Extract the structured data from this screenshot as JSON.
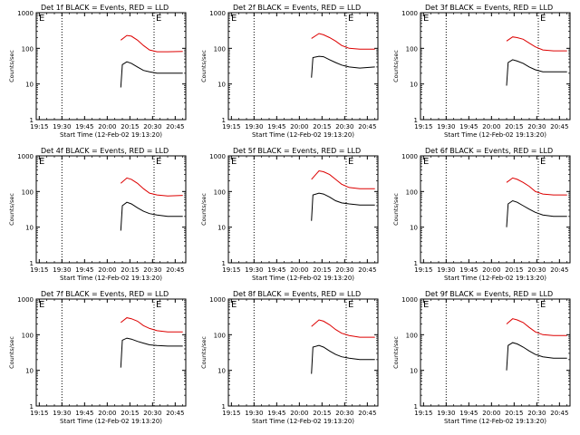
{
  "y_axis_label": "Counts/sec",
  "x_axis_label": "Start Time (12-Feb-02 19:13:20)",
  "x_tick_labels": [
    "19:15",
    "19:30",
    "19:45",
    "20:00",
    "20:15",
    "20:30",
    "20:45"
  ],
  "y_tick_labels": [
    "1",
    "10",
    "100",
    "1000"
  ],
  "top_label_left": "E",
  "top_label_right": "E",
  "colors": {
    "events": "#000000",
    "lld": "#dd0000",
    "axes": "#000000"
  },
  "chart_data": [
    {
      "type": "line",
      "title": "Det 1f BLACK = Events, RED = LLD",
      "xlabel": "Start Time (12-Feb-02 19:13:20)",
      "ylabel": "Counts/sec",
      "x_unit": "HH:MM",
      "ylim": [
        1,
        1000
      ],
      "y_scale": "log",
      "xlim": [
        "19:13",
        "20:52"
      ],
      "vlines": [
        "19:30",
        "20:31"
      ],
      "series": [
        {
          "name": "Events",
          "x": [
            "20:09",
            "20:10",
            "20:13",
            "20:16",
            "20:20",
            "20:24",
            "20:28",
            "20:33",
            "20:40",
            "20:50"
          ],
          "values": [
            8,
            35,
            42,
            38,
            30,
            24,
            22,
            20,
            20,
            20
          ]
        },
        {
          "name": "LLD",
          "x": [
            "20:09",
            "20:13",
            "20:16",
            "20:20",
            "20:24",
            "20:28",
            "20:33",
            "20:40",
            "20:50"
          ],
          "values": [
            170,
            230,
            220,
            170,
            120,
            90,
            80,
            80,
            82
          ]
        }
      ]
    },
    {
      "type": "line",
      "title": "Det 2f BLACK = Events, RED = LLD",
      "xlabel": "Start Time (12-Feb-02 19:13:20)",
      "ylabel": "Counts/sec",
      "x_unit": "HH:MM",
      "ylim": [
        1,
        1000
      ],
      "y_scale": "log",
      "xlim": [
        "19:13",
        "20:52"
      ],
      "vlines": [
        "19:30",
        "20:31"
      ],
      "series": [
        {
          "name": "Events",
          "x": [
            "20:08",
            "20:09",
            "20:13",
            "20:16",
            "20:20",
            "20:24",
            "20:28",
            "20:33",
            "20:40",
            "20:50"
          ],
          "values": [
            15,
            55,
            60,
            58,
            48,
            40,
            34,
            30,
            28,
            30
          ]
        },
        {
          "name": "LLD",
          "x": [
            "20:08",
            "20:13",
            "20:16",
            "20:20",
            "20:24",
            "20:28",
            "20:33",
            "20:40",
            "20:50"
          ],
          "values": [
            190,
            260,
            240,
            200,
            160,
            120,
            100,
            95,
            95
          ]
        }
      ]
    },
    {
      "type": "line",
      "title": "Det 3f BLACK = Events, RED = LLD",
      "xlabel": "Start Time (12-Feb-02 19:13:20)",
      "ylabel": "Counts/sec",
      "x_unit": "HH:MM",
      "ylim": [
        1,
        1000
      ],
      "y_scale": "log",
      "xlim": [
        "19:13",
        "20:52"
      ],
      "vlines": [
        "19:30",
        "20:31"
      ],
      "series": [
        {
          "name": "Events",
          "x": [
            "20:10",
            "20:11",
            "20:14",
            "20:17",
            "20:21",
            "20:25",
            "20:29",
            "20:34",
            "20:41",
            "20:50"
          ],
          "values": [
            9,
            40,
            48,
            44,
            38,
            30,
            25,
            22,
            22,
            22
          ]
        },
        {
          "name": "LLD",
          "x": [
            "20:10",
            "20:14",
            "20:17",
            "20:21",
            "20:25",
            "20:29",
            "20:34",
            "20:41",
            "20:50"
          ],
          "values": [
            160,
            210,
            200,
            180,
            140,
            110,
            90,
            85,
            85
          ]
        }
      ]
    },
    {
      "type": "line",
      "title": "Det 4f BLACK = Events, RED = LLD",
      "xlabel": "Start Time (12-Feb-02 19:13:20)",
      "ylabel": "Counts/sec",
      "x_unit": "HH:MM",
      "ylim": [
        1,
        1000
      ],
      "y_scale": "log",
      "xlim": [
        "19:13",
        "20:52"
      ],
      "vlines": [
        "19:30",
        "20:31"
      ],
      "series": [
        {
          "name": "Events",
          "x": [
            "20:09",
            "20:10",
            "20:13",
            "20:16",
            "20:20",
            "20:24",
            "20:28",
            "20:33",
            "20:40",
            "20:50"
          ],
          "values": [
            8,
            40,
            50,
            45,
            35,
            28,
            24,
            22,
            20,
            20
          ]
        },
        {
          "name": "LLD",
          "x": [
            "20:09",
            "20:13",
            "20:16",
            "20:20",
            "20:24",
            "20:28",
            "20:33",
            "20:40",
            "20:50"
          ],
          "values": [
            170,
            240,
            220,
            170,
            120,
            90,
            80,
            75,
            78
          ]
        }
      ]
    },
    {
      "type": "line",
      "title": "Det 5f BLACK = Events, RED = LLD",
      "xlabel": "Start Time (12-Feb-02 19:13:20)",
      "ylabel": "Counts/sec",
      "x_unit": "HH:MM",
      "ylim": [
        1,
        1000
      ],
      "y_scale": "log",
      "xlim": [
        "19:13",
        "20:52"
      ],
      "vlines": [
        "19:30",
        "20:31"
      ],
      "series": [
        {
          "name": "Events",
          "x": [
            "20:08",
            "20:09",
            "20:13",
            "20:16",
            "20:20",
            "20:24",
            "20:28",
            "20:33",
            "20:40",
            "20:50"
          ],
          "values": [
            15,
            80,
            90,
            85,
            70,
            55,
            48,
            45,
            42,
            42
          ]
        },
        {
          "name": "LLD",
          "x": [
            "20:08",
            "20:13",
            "20:16",
            "20:20",
            "20:24",
            "20:28",
            "20:33",
            "20:40",
            "20:50"
          ],
          "values": [
            220,
            380,
            360,
            300,
            220,
            160,
            130,
            120,
            120
          ]
        }
      ]
    },
    {
      "type": "line",
      "title": "Det 6f BLACK = Events, RED = LLD",
      "xlabel": "Start Time (12-Feb-02 19:13:20)",
      "ylabel": "Counts/sec",
      "x_unit": "HH:MM",
      "ylim": [
        1,
        1000
      ],
      "y_scale": "log",
      "xlim": [
        "19:13",
        "20:52"
      ],
      "vlines": [
        "19:30",
        "20:31"
      ],
      "series": [
        {
          "name": "Events",
          "x": [
            "20:10",
            "20:11",
            "20:14",
            "20:17",
            "20:21",
            "20:25",
            "20:29",
            "20:34",
            "20:41",
            "20:50"
          ],
          "values": [
            10,
            45,
            55,
            50,
            40,
            32,
            26,
            22,
            20,
            20
          ]
        },
        {
          "name": "LLD",
          "x": [
            "20:10",
            "20:14",
            "20:17",
            "20:21",
            "20:25",
            "20:29",
            "20:34",
            "20:41",
            "20:50"
          ],
          "values": [
            180,
            240,
            220,
            180,
            140,
            100,
            85,
            80,
            80
          ]
        }
      ]
    },
    {
      "type": "line",
      "title": "Det 7f BLACK = Events, RED = LLD",
      "xlabel": "Start Time (12-Feb-02 19:13:20)",
      "ylabel": "Counts/sec",
      "x_unit": "HH:MM",
      "ylim": [
        1,
        1000
      ],
      "y_scale": "log",
      "xlim": [
        "19:13",
        "20:52"
      ],
      "vlines": [
        "19:30",
        "20:31"
      ],
      "series": [
        {
          "name": "Events",
          "x": [
            "20:09",
            "20:10",
            "20:13",
            "20:16",
            "20:20",
            "20:24",
            "20:28",
            "20:33",
            "20:40",
            "20:50"
          ],
          "values": [
            12,
            70,
            80,
            75,
            65,
            58,
            52,
            50,
            48,
            48
          ]
        },
        {
          "name": "LLD",
          "x": [
            "20:09",
            "20:13",
            "20:16",
            "20:20",
            "20:24",
            "20:28",
            "20:33",
            "20:40",
            "20:50"
          ],
          "values": [
            220,
            300,
            280,
            240,
            180,
            150,
            130,
            120,
            120
          ]
        }
      ]
    },
    {
      "type": "line",
      "title": "Det 8f BLACK = Events, RED = LLD",
      "xlabel": "Start Time (12-Feb-02 19:13:20)",
      "ylabel": "Counts/sec",
      "x_unit": "HH:MM",
      "ylim": [
        1,
        1000
      ],
      "y_scale": "log",
      "xlim": [
        "19:13",
        "20:52"
      ],
      "vlines": [
        "19:30",
        "20:31"
      ],
      "series": [
        {
          "name": "Events",
          "x": [
            "20:08",
            "20:09",
            "20:13",
            "20:16",
            "20:20",
            "20:24",
            "20:28",
            "20:33",
            "20:40",
            "20:50"
          ],
          "values": [
            8,
            45,
            50,
            45,
            35,
            28,
            24,
            22,
            20,
            20
          ]
        },
        {
          "name": "LLD",
          "x": [
            "20:08",
            "20:13",
            "20:16",
            "20:20",
            "20:24",
            "20:28",
            "20:33",
            "20:40",
            "20:50"
          ],
          "values": [
            170,
            260,
            240,
            190,
            140,
            110,
            95,
            85,
            85
          ]
        }
      ]
    },
    {
      "type": "line",
      "title": "Det 9f BLACK = Events, RED = LLD",
      "xlabel": "Start Time (12-Feb-02 19:13:20)",
      "ylabel": "Counts/sec",
      "x_unit": "HH:MM",
      "ylim": [
        1,
        1000
      ],
      "y_scale": "log",
      "xlim": [
        "19:13",
        "20:52"
      ],
      "vlines": [
        "19:30",
        "20:31"
      ],
      "series": [
        {
          "name": "Events",
          "x": [
            "20:10",
            "20:11",
            "20:14",
            "20:17",
            "20:21",
            "20:25",
            "20:29",
            "20:34",
            "20:41",
            "20:50"
          ],
          "values": [
            10,
            50,
            60,
            55,
            45,
            35,
            28,
            24,
            22,
            22
          ]
        },
        {
          "name": "LLD",
          "x": [
            "20:10",
            "20:14",
            "20:17",
            "20:21",
            "20:25",
            "20:29",
            "20:34",
            "20:41",
            "20:50"
          ],
          "values": [
            200,
            280,
            260,
            220,
            160,
            120,
            100,
            95,
            95
          ]
        }
      ]
    }
  ]
}
